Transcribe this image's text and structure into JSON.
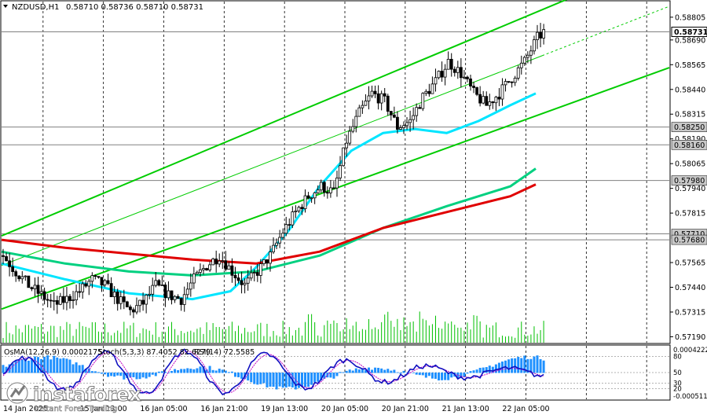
{
  "header": {
    "symbol": "NZDUSD,H1",
    "ohlc": "0.58710 0.58736 0.58710 0.58731"
  },
  "indicator_header": {
    "osma": "OsMA(12,26,9) 0.0002175",
    "stoch": "Stoch(5,3,3) 87.4052 82.6279",
    "rsi": "RSI(14) 72.5585"
  },
  "watermark": {
    "brand": "instaforex",
    "tagline": "Instant Forex Trading"
  },
  "colors": {
    "candle": "#000000",
    "volume": "#00c000",
    "channel": "#00cc00",
    "ema_fast": "#00e5ff",
    "ema_mid": "#00d080",
    "ema_slow": "#e00000",
    "hline": "#808080",
    "grid": "#000000",
    "osma": "#1e90ff",
    "stoch_main": "#1010c0",
    "stoch_signal": "#c000c0"
  },
  "price_axis": {
    "ticks": [
      "0.58805",
      "0.58690",
      "0.58565",
      "0.58440",
      "0.58315",
      "0.58190",
      "0.58065",
      "0.57940",
      "0.57815",
      "0.57565",
      "0.57440",
      "0.57315",
      "0.57190"
    ],
    "tick_values": [
      0.58805,
      0.5869,
      0.58565,
      0.5844,
      0.58315,
      0.5819,
      0.58065,
      0.5794,
      0.57815,
      0.57565,
      0.5744,
      0.57315,
      0.5719
    ],
    "boxed_labels": [
      "0.58731",
      "0.58250",
      "0.58160",
      "0.57980",
      "0.57710",
      "0.57680"
    ],
    "boxed_values": [
      0.58731,
      0.5825,
      0.5816,
      0.5798,
      0.5771,
      0.5768
    ]
  },
  "sub_axis": {
    "labels": [
      "0.0004222",
      "80",
      "50",
      "30",
      "20",
      "-0.0005115"
    ],
    "values": [
      80,
      50,
      30,
      20
    ]
  },
  "time_axis": {
    "labels": [
      "14 Jan 2025",
      "15 Jan 13:00",
      "16 Jan 05:00",
      "16 Jan 21:00",
      "19 Jan 13:00",
      "20 Jan 05:00",
      "20 Jan 21:00",
      "21 Jan 13:00",
      "22 Jan 05:00"
    ]
  },
  "chart_data": {
    "type": "candlestick",
    "timeframe": "H1",
    "symbol": "NZDUSD",
    "ylim": [
      0.5716,
      0.5888
    ],
    "horizontal_levels": [
      0.58731,
      0.5825,
      0.5816,
      0.5798,
      0.5771,
      0.5768
    ],
    "close_path": [
      [
        0,
        0.576
      ],
      [
        4,
        0.5752
      ],
      [
        8,
        0.5745
      ],
      [
        12,
        0.574
      ],
      [
        16,
        0.5735
      ],
      [
        20,
        0.5738
      ],
      [
        24,
        0.5742
      ],
      [
        28,
        0.5748
      ],
      [
        32,
        0.5745
      ],
      [
        36,
        0.5738
      ],
      [
        40,
        0.5732
      ],
      [
        44,
        0.5736
      ],
      [
        48,
        0.5745
      ],
      [
        52,
        0.574
      ],
      [
        56,
        0.5738
      ],
      [
        60,
        0.5748
      ],
      [
        64,
        0.5755
      ],
      [
        68,
        0.576
      ],
      [
        72,
        0.5752
      ],
      [
        76,
        0.5745
      ],
      [
        80,
        0.5752
      ],
      [
        84,
        0.576
      ],
      [
        88,
        0.5772
      ],
      [
        92,
        0.5782
      ],
      [
        96,
        0.579
      ],
      [
        100,
        0.5795
      ],
      [
        104,
        0.5792
      ],
      [
        108,
        0.5818
      ],
      [
        112,
        0.5832
      ],
      [
        116,
        0.5842
      ],
      [
        120,
        0.5838
      ],
      [
        124,
        0.5825
      ],
      [
        128,
        0.5828
      ],
      [
        132,
        0.584
      ],
      [
        136,
        0.5848
      ],
      [
        140,
        0.5858
      ],
      [
        144,
        0.5852
      ],
      [
        148,
        0.5842
      ],
      [
        152,
        0.5836
      ],
      [
        156,
        0.5842
      ],
      [
        160,
        0.585
      ],
      [
        164,
        0.5858
      ],
      [
        168,
        0.587
      ],
      [
        170,
        0.5873
      ]
    ],
    "moving_averages": [
      {
        "name": "fast",
        "points": [
          [
            0,
            0.5756
          ],
          [
            20,
            0.5748
          ],
          [
            40,
            0.5741
          ],
          [
            60,
            0.5738
          ],
          [
            72,
            0.5742
          ],
          [
            80,
            0.5754
          ],
          [
            90,
            0.5772
          ],
          [
            100,
            0.5795
          ],
          [
            110,
            0.5813
          ],
          [
            120,
            0.5822
          ],
          [
            130,
            0.5824
          ],
          [
            140,
            0.5822
          ],
          [
            150,
            0.5828
          ],
          [
            160,
            0.5836
          ],
          [
            168,
            0.5842
          ]
        ]
      },
      {
        "name": "mid",
        "points": [
          [
            0,
            0.5762
          ],
          [
            20,
            0.5756
          ],
          [
            40,
            0.5752
          ],
          [
            60,
            0.575
          ],
          [
            80,
            0.5752
          ],
          [
            100,
            0.576
          ],
          [
            120,
            0.5774
          ],
          [
            140,
            0.5785
          ],
          [
            160,
            0.5795
          ],
          [
            168,
            0.5804
          ]
        ]
      },
      {
        "name": "slow",
        "points": [
          [
            0,
            0.5768
          ],
          [
            20,
            0.5764
          ],
          [
            40,
            0.5761
          ],
          [
            60,
            0.5758
          ],
          [
            80,
            0.5756
          ],
          [
            100,
            0.5762
          ],
          [
            120,
            0.5774
          ],
          [
            140,
            0.5782
          ],
          [
            160,
            0.579
          ],
          [
            168,
            0.5796
          ]
        ]
      }
    ],
    "channel": {
      "upper": [
        [
          0,
          0.577
        ],
        [
          180,
          0.5891
        ]
      ],
      "middle": [
        [
          0,
          0.5755
        ],
        [
          210,
          0.5886
        ]
      ],
      "lower": [
        [
          0,
          0.5733
        ],
        [
          210,
          0.5855
        ]
      ]
    },
    "vertical_gridlines_at": [
      11,
      27,
      43,
      59,
      75,
      91,
      107,
      123,
      139,
      155,
      171
    ]
  }
}
